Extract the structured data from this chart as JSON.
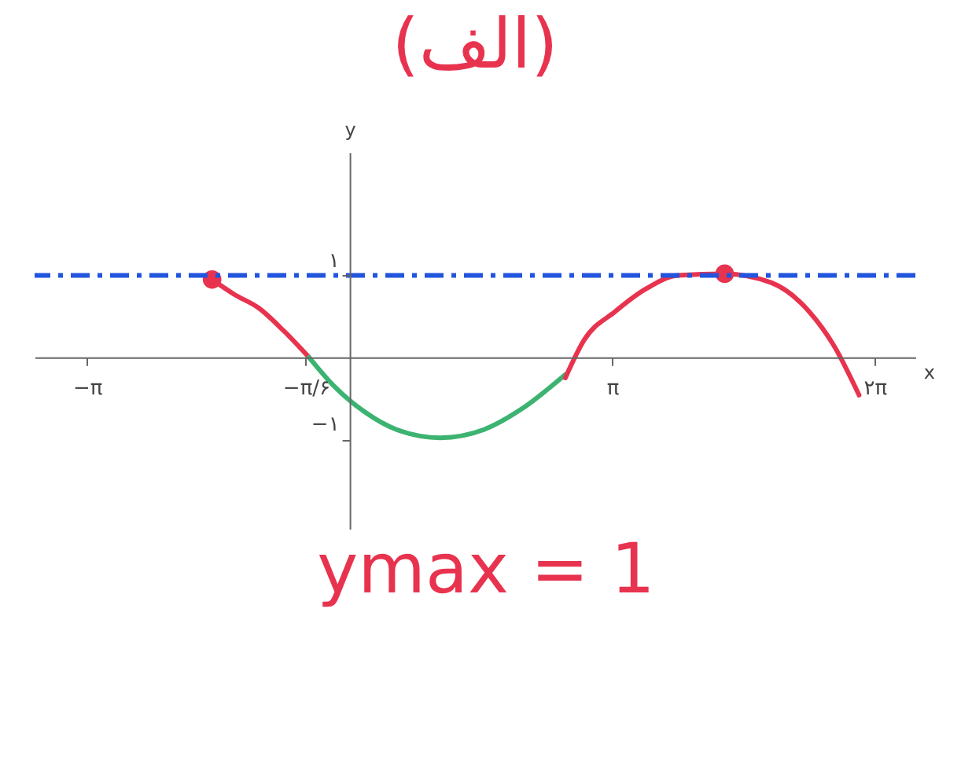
{
  "chart_data": {
    "type": "line",
    "title": "(الف)",
    "xlabel": "x",
    "ylabel": "y",
    "annotations": [
      "ymax = 1"
    ],
    "xlim": [
      -3.77,
      6.77
    ],
    "ylim": [
      -2.1,
      2.5
    ],
    "xticks": [
      {
        "value": -3.1416,
        "label": "−π"
      },
      {
        "value": -0.5236,
        "label": "−π/۶"
      },
      {
        "value": 3.1416,
        "label": "π"
      },
      {
        "value": 6.2832,
        "label": "۲π"
      }
    ],
    "yticks": [
      {
        "value": 1,
        "label": "۱"
      },
      {
        "value": -1,
        "label": "−۱"
      }
    ],
    "marker": "none",
    "line_style": "solid",
    "series": [
      {
        "color": "#e8334f",
        "x": [
          -1.646,
          -1.384,
          -1.085,
          -0.785,
          -0.486
        ],
        "values": [
          0.95,
          0.77,
          0.6,
          0.32,
          0
        ]
      },
      {
        "color": "#3cb371",
        "x": [
          -0.486,
          -0.187,
          0.187,
          0.561,
          1.085,
          1.608,
          2.057,
          2.581
        ],
        "values": [
          0,
          -0.35,
          -0.67,
          -0.88,
          -0.98,
          -0.88,
          -0.63,
          -0.21
        ]
      },
      {
        "color": "#e8334f",
        "x": [
          2.581,
          2.805,
          3.179,
          3.553,
          3.927,
          4.488,
          5.049,
          5.498,
          5.797,
          6.096
        ],
        "values": [
          -0.25,
          0.21,
          0.56,
          0.84,
          1.0,
          1.02,
          0.91,
          0.56,
          0.14,
          -0.46
        ]
      },
      {
        "type": "scatter",
        "marker": "circle",
        "color": "#e8334f",
        "x": [
          -1.646,
          4.488
        ],
        "values": [
          0.95,
          1.02
        ]
      }
    ],
    "ref_lines": [
      {
        "axis": "y",
        "value": 1,
        "color": "#2255dd",
        "line_style": "dashed"
      }
    ]
  }
}
